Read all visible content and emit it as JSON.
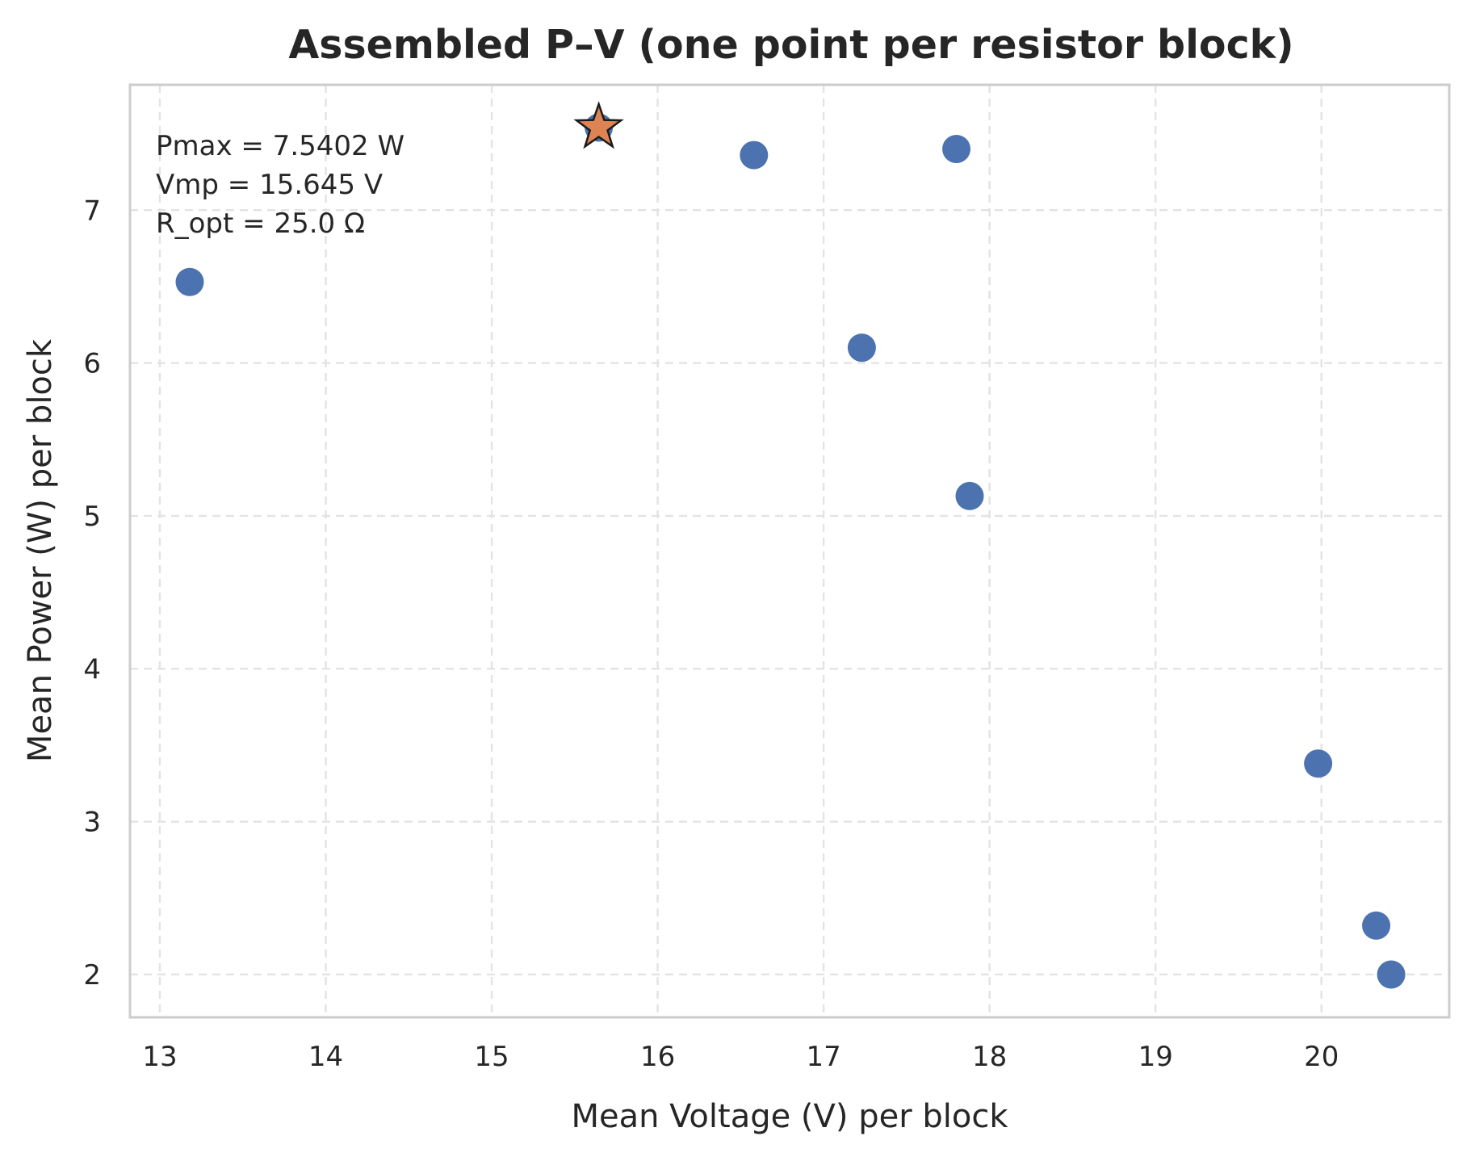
{
  "chart_data": {
    "type": "scatter",
    "title": "Assembled P–V (one point per resistor block)",
    "xlabel": "Mean Voltage (V) per block",
    "ylabel": "Mean Power (W) per block",
    "xlim": [
      12.82,
      20.77
    ],
    "ylim": [
      1.72,
      7.82
    ],
    "xticks": [
      13,
      14,
      15,
      16,
      17,
      18,
      19,
      20
    ],
    "yticks": [
      2,
      3,
      4,
      5,
      6,
      7
    ],
    "grid": true,
    "series": [
      {
        "marker": "circle",
        "color": "#4c72b0",
        "points": [
          {
            "x": 13.18,
            "y": 6.53
          },
          {
            "x": 15.645,
            "y": 7.54
          },
          {
            "x": 16.58,
            "y": 7.36
          },
          {
            "x": 17.23,
            "y": 6.1
          },
          {
            "x": 17.8,
            "y": 7.4
          },
          {
            "x": 17.88,
            "y": 5.13
          },
          {
            "x": 19.98,
            "y": 3.38
          },
          {
            "x": 20.33,
            "y": 2.32
          },
          {
            "x": 20.42,
            "y": 2.0
          }
        ]
      }
    ],
    "highlight": {
      "marker": "star",
      "color": "#dd8452",
      "x": 15.645,
      "y": 7.5402
    },
    "annotation": {
      "position": "top-left",
      "lines": [
        "Pmax = 7.5402 W",
        "Vmp = 15.645 V",
        "R_opt = 25.0 Ω"
      ]
    }
  }
}
